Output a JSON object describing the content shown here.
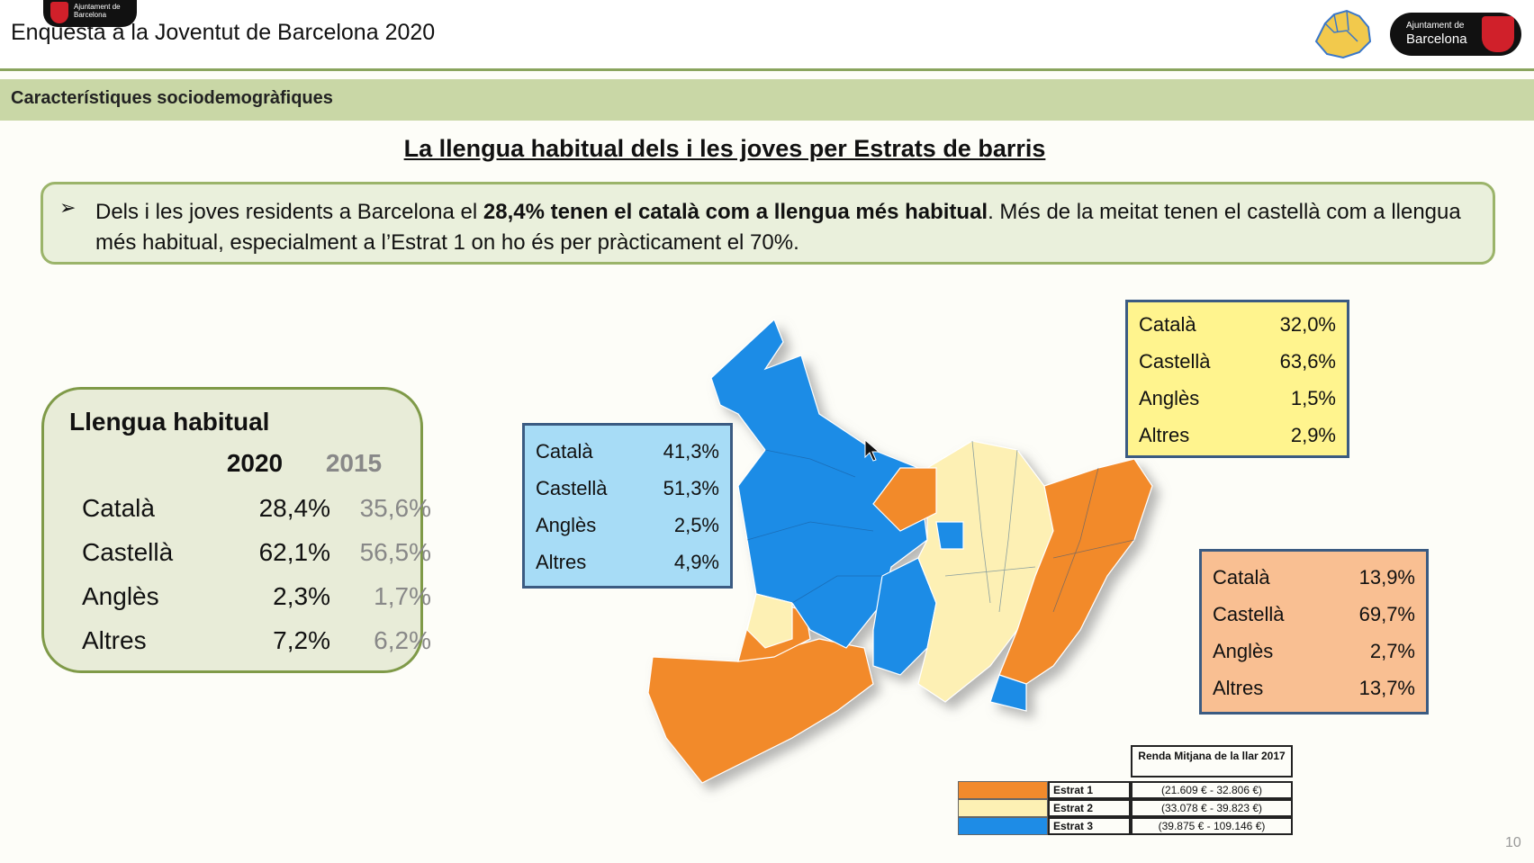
{
  "header": {
    "tiny_logo_line1": "Ajuntament de",
    "tiny_logo_line2": "Barcelona",
    "deck_title": "Enquesta a la Joventut de Barcelona 2020",
    "logo_line1": "Ajuntament de",
    "logo_line2": "Barcelona"
  },
  "section": {
    "label": "Característiques sociodemogràfiques"
  },
  "slide_title": "La llengua habitual dels i les joves per Estrats de barris",
  "bullet": {
    "part1": "Dels i les joves residents a Barcelona el ",
    "bold": "28,4% tenen el català com a llengua més habitual",
    "part2": ". Més de la meitat tenen el castellà com a llengua més habitual, especialment a l’Estrat 1 on ho és per pràcticament el 70%."
  },
  "lang_box": {
    "title": "Llengua habitual",
    "year1": "2020",
    "year2": "2015",
    "rows": [
      {
        "name": "Català",
        "v2020": "28,4%",
        "v2015": "35,6%"
      },
      {
        "name": "Castellà",
        "v2020": "62,1%",
        "v2015": "56,5%"
      },
      {
        "name": "Anglès",
        "v2020": "2,3%",
        "v2015": "1,7%"
      },
      {
        "name": "Altres",
        "v2020": "7,2%",
        "v2015": "6,2%"
      }
    ]
  },
  "estrat3_box": {
    "color": "#a7dcf6",
    "rows": [
      {
        "name": "Català",
        "value": "41,3%"
      },
      {
        "name": "Castellà",
        "value": "51,3%"
      },
      {
        "name": "Anglès",
        "value": "2,5%"
      },
      {
        "name": "Altres",
        "value": "4,9%"
      }
    ]
  },
  "estrat2_box": {
    "color": "#fff48e",
    "rows": [
      {
        "name": "Català",
        "value": "32,0%"
      },
      {
        "name": "Castellà",
        "value": "63,6%"
      },
      {
        "name": "Anglès",
        "value": "1,5%"
      },
      {
        "name": "Altres",
        "value": "2,9%"
      }
    ]
  },
  "estrat1_box": {
    "color": "#f9bf92",
    "rows": [
      {
        "name": "Català",
        "value": "13,9%"
      },
      {
        "name": "Castellà",
        "value": "69,7%"
      },
      {
        "name": "Anglès",
        "value": "2,7%"
      },
      {
        "name": "Altres",
        "value": "13,7%"
      }
    ]
  },
  "legend": {
    "header": "Renda Mitjana de la llar 2017",
    "rows": [
      {
        "name": "Estrat 1",
        "range": "(21.609 € - 32.806 €)",
        "color": "#f28a2c"
      },
      {
        "name": "Estrat 2",
        "range": "(33.078 € - 39.823 €)",
        "color": "#fdf0b4"
      },
      {
        "name": "Estrat 3",
        "range": "(39.875 € - 109.146 €)",
        "color": "#1e8ce6"
      }
    ]
  },
  "page_number": "10"
}
